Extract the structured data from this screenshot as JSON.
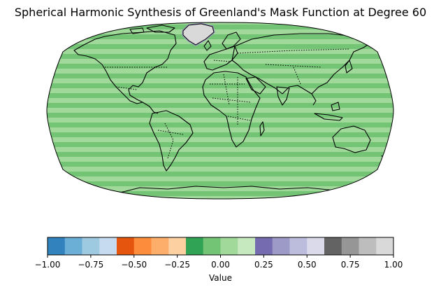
{
  "title": "Spherical Harmonic Synthesis of Greenland's Mask Function at Degree 60",
  "map": {
    "projection": "Robinson",
    "field": "spherical harmonic synthesis of Greenland mask, degree 60",
    "background_value_approx": 0.0,
    "greenland_value_approx": 1.0,
    "features": [
      "coastlines",
      "country-borders"
    ]
  },
  "colorbar": {
    "label": "Value",
    "vmin": -1.0,
    "vmax": 1.0,
    "orientation": "horizontal",
    "colormap": "tab20c",
    "colors": [
      "#3182bd",
      "#6baed6",
      "#9ecae1",
      "#c6dbef",
      "#e6550d",
      "#fd8d3c",
      "#fdae6b",
      "#fdd0a2",
      "#31a354",
      "#74c476",
      "#a1d99b",
      "#c7e9c0",
      "#756bb1",
      "#9e9ac8",
      "#bcbddc",
      "#dadaeb",
      "#636363",
      "#969696",
      "#bdbdbd",
      "#d9d9d9"
    ],
    "ticks": [
      "−1.00",
      "−0.75",
      "−0.50",
      "−0.25",
      "0.00",
      "0.25",
      "0.50",
      "0.75",
      "1.00"
    ]
  }
}
